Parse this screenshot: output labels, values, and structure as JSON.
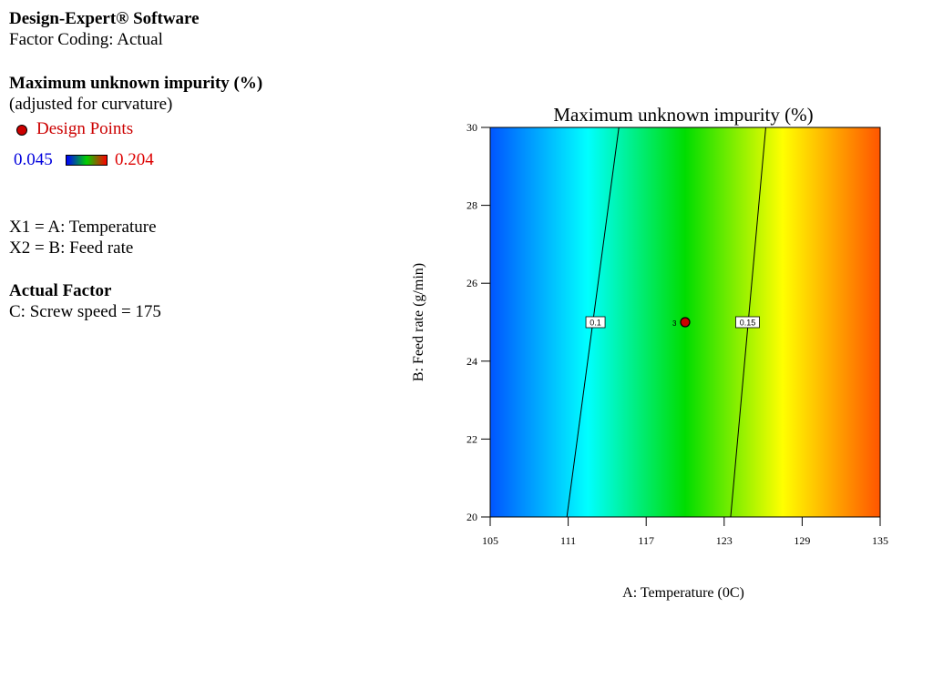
{
  "info": {
    "software": "Design-Expert® Software",
    "coding": "Factor Coding: Actual",
    "response_title": "Maximum unknown impurity (%)",
    "response_note": "(adjusted for curvature)",
    "design_points_label": "Design Points",
    "range_min": "0.045",
    "range_max": "0.204",
    "x1": "X1 = A: Temperature",
    "x2": "X2 = B: Feed rate",
    "actual_factor_heading": "Actual Factor",
    "actual_factor": "C: Screw speed = 175"
  },
  "chart_data": {
    "type": "heatmap",
    "title": "Maximum unknown impurity (%)",
    "xlabel": "A: Temperature (0C)",
    "ylabel": "B: Feed rate (g/min)",
    "xlim": [
      105,
      135
    ],
    "ylim": [
      20,
      30
    ],
    "xticks": [
      "105",
      "111",
      "117",
      "123",
      "129",
      "135"
    ],
    "yticks": [
      "20",
      "22",
      "24",
      "26",
      "28",
      "30"
    ],
    "color_range": [
      0.045,
      0.204
    ],
    "colors": [
      "#0055ff",
      "#00ffff",
      "#00dd00",
      "#ffff00",
      "#ff5500"
    ],
    "contours": [
      {
        "label": "0.1",
        "points": [
          [
            110.9,
            20
          ],
          [
            114.9,
            30
          ]
        ],
        "label_at": [
          113.1,
          25
        ]
      },
      {
        "label": "0.15",
        "points": [
          [
            123.5,
            20
          ],
          [
            126.2,
            30
          ]
        ],
        "label_at": [
          124.8,
          25
        ]
      }
    ],
    "design_points": [
      {
        "x": 120,
        "y": 25,
        "label": "3"
      }
    ]
  }
}
